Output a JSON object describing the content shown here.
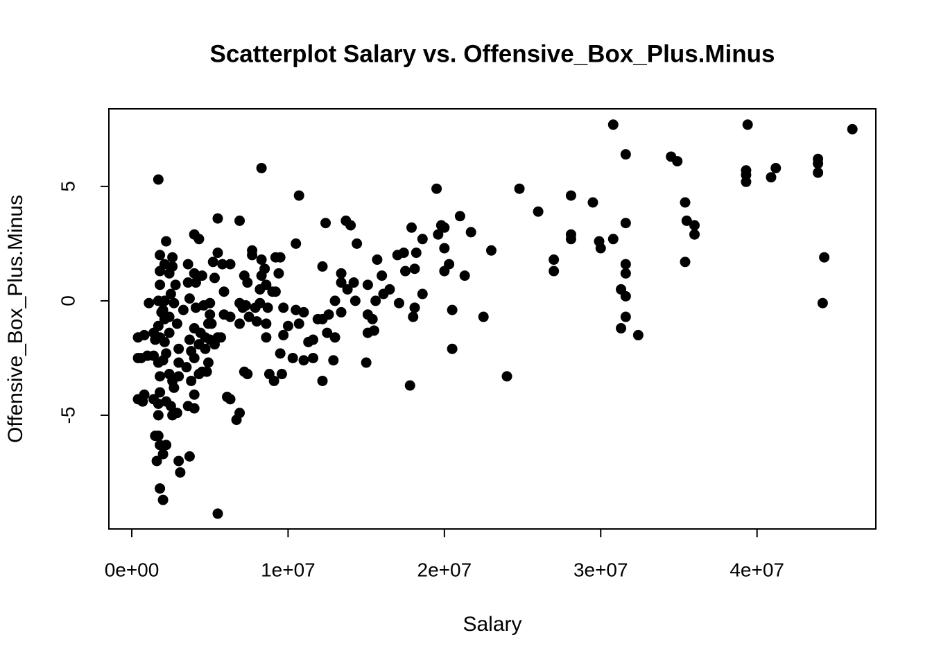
{
  "chart_data": {
    "type": "scatter",
    "title": "Scatterplot Salary vs. Offensive_Box_Plus.Minus",
    "x_label": "Salary",
    "y_label": "Offensive_Box_Plus.Minus",
    "color": "#000000",
    "xlim": [
      -1465000,
      47600000
    ],
    "ylim": [
      -9.97,
      8.39
    ],
    "xticks": [
      {
        "value": 0,
        "label": "0e+00"
      },
      {
        "value": 10000000,
        "label": "1e+07"
      },
      {
        "value": 20000000,
        "label": "2e+07"
      },
      {
        "value": 30000000,
        "label": "3e+07"
      },
      {
        "value": 40000000,
        "label": "4e+07"
      }
    ],
    "yticks": [
      -5,
      0,
      5
    ],
    "x": [
      46100000.0,
      39400000.0,
      30800000.0,
      31600000.0,
      34500000.0,
      34900000.0,
      43900000.0,
      43900000.0,
      43900000.0,
      41200000.0,
      40900000.0,
      39300000.0,
      39300000.0,
      39300000.0,
      44300000.0,
      44200000.0,
      35400000.0,
      35500000.0,
      36000000.0,
      36000000.0,
      35400000.0,
      28100000.0,
      29500000.0,
      24800000.0,
      26000000.0,
      28100000.0,
      28100000.0,
      29900000.0,
      30000000.0,
      30800000.0,
      27000000.0,
      27000000.0,
      31600000.0,
      31600000.0,
      31600000.0,
      31300000.0,
      31600000.0,
      31600000.0,
      31300000.0,
      32400000.0,
      24000000.0,
      22500000.0,
      20500000.0,
      20500000.0,
      19500000.0,
      21000000.0,
      21700000.0,
      23000000.0,
      19800000.0,
      20000000.0,
      19600000.0,
      20000000.0,
      20300000.0,
      20000000.0,
      21300000.0,
      17900000.0,
      18600000.0,
      18200000.0,
      17400000.0,
      17000000.0,
      17500000.0,
      18100000.0,
      18600000.0,
      18100000.0,
      18000000.0,
      17800000.0,
      17100000.0,
      15700000.0,
      16000000.0,
      16500000.0,
      16100000.0,
      15600000.0,
      15100000.0,
      15100000.0,
      15400000.0,
      15500000.0,
      15100000.0,
      15000000.0,
      14400000.0,
      13700000.0,
      14000000.0,
      12400000.0,
      13400000.0,
      13400000.0,
      13800000.0,
      14200000.0,
      14300000.0,
      13000000.0,
      13400000.0,
      12200000.0,
      12600000.0,
      12200000.0,
      11900000.0,
      12500000.0,
      13000000.0,
      11600000.0,
      11300000.0,
      11600000.0,
      12900000.0,
      12200000.0,
      10700000.0,
      10500000.0,
      9500000.0,
      9200000.0,
      9400000.0,
      9000000.0,
      9200000.0,
      10500000.0,
      11000000.0,
      10700000.0,
      10000000.0,
      9700000.0,
      9700000.0,
      11000000.0,
      10300000.0,
      9500000.0,
      9600000.0,
      8800000.0,
      9100000.0,
      8300000.0,
      8300000.0,
      8500000.0,
      8300000.0,
      8600000.0,
      8200000.0,
      8200000.0,
      7900000.0,
      8700000.0,
      8600000.0,
      8600000.0,
      7700000.0,
      7700000.0,
      7200000.0,
      7400000.0,
      8000000.0,
      7500000.0,
      7100000.0,
      6900000.0,
      6900000.0,
      7300000.0,
      6900000.0,
      6300000.0,
      7200000.0,
      7400000.0,
      6900000.0,
      6700000.0,
      6100000.0,
      6300000.0,
      5500000.0,
      5500000.0,
      5200000.0,
      5800000.0,
      6300000.0,
      5300000.0,
      5900000.0,
      5900000.0,
      5500000.0,
      5700000.0,
      5300000.0,
      5500000.0,
      4300000.0,
      4000000.0,
      3600000.0,
      4000000.0,
      4500000.0,
      4100000.0,
      3600000.0,
      3700000.0,
      4100000.0,
      4600000.0,
      5000000.0,
      5000000.0,
      4900000.0,
      5100000.0,
      4000000.0,
      4400000.0,
      4700000.0,
      5000000.0,
      4300000.0,
      4700000.0,
      3700000.0,
      3800000.0,
      4000000.0,
      4900000.0,
      4500000.0,
      4800000.0,
      4300000.0,
      3800000.0,
      4000000.0,
      3600000.0,
      4000000.0,
      3700000.0,
      3000000.0,
      3100000.0,
      2900000.0,
      2500000.0,
      2600000.0,
      2200000.0,
      2700000.0,
      3000000.0,
      3500000.0,
      3000000.0,
      2600000.0,
      3000000.0,
      2900000.0,
      3300000.0,
      2700000.0,
      2800000.0,
      2600000.0,
      2600000.0,
      2200000.0,
      2400000.0,
      2500000.0,
      2400000.0,
      2400000.0,
      2200000.0,
      2400000.0,
      1800000.0,
      1800000.0,
      1800000.0,
      1700000.0,
      1900000.0,
      1700000.0,
      1800000.0,
      1700000.0,
      1800000.0,
      1800000.0,
      1700000.0,
      1700000.0,
      1700000.0,
      1800000.0,
      2200000.0,
      2000000.0,
      1700000.0,
      1800000.0,
      2000000.0,
      1600000.0,
      1500000.0,
      1400000.0,
      1400000.0,
      1500000.0,
      1400000.0,
      1100000.0,
      1000000.0,
      800000.0,
      800000.0,
      400000.0,
      600000.0,
      400000.0,
      400000.0,
      700000.0,
      2100000.0,
      2000000.0,
      2100000.0,
      2100000.0,
      2000000.0,
      2100000.0
    ],
    "y": [
      7.5,
      7.7,
      7.7,
      6.4,
      6.3,
      6.1,
      6.2,
      6.0,
      5.6,
      5.8,
      5.4,
      5.7,
      5.5,
      5.2,
      1.9,
      -0.1,
      4.3,
      3.5,
      3.3,
      2.9,
      1.7,
      4.6,
      4.3,
      4.9,
      3.9,
      2.9,
      2.7,
      2.6,
      2.3,
      2.7,
      1.8,
      1.3,
      3.4,
      1.6,
      1.2,
      0.5,
      0.2,
      -0.7,
      -1.2,
      -1.5,
      -3.3,
      -0.7,
      -0.4,
      -2.1,
      4.9,
      3.7,
      3.0,
      2.2,
      3.3,
      3.2,
      2.9,
      2.3,
      1.6,
      1.3,
      1.1,
      3.2,
      2.7,
      2.1,
      2.1,
      2.0,
      1.3,
      1.4,
      0.3,
      -0.3,
      -0.7,
      -3.7,
      -0.1,
      1.8,
      1.1,
      0.5,
      0.3,
      0.0,
      0.7,
      -0.6,
      -0.8,
      -1.3,
      -1.4,
      -2.7,
      2.5,
      3.5,
      3.3,
      3.4,
      1.2,
      0.8,
      0.5,
      0.8,
      0.0,
      0.0,
      -0.5,
      1.5,
      -0.6,
      -0.8,
      -0.8,
      -1.4,
      -1.6,
      -1.7,
      -1.8,
      -2.5,
      -2.6,
      -3.5,
      4.6,
      2.5,
      1.9,
      1.9,
      1.2,
      0.4,
      0.4,
      -0.4,
      -0.5,
      -1.0,
      -1.1,
      -1.5,
      -0.3,
      -2.6,
      -2.5,
      -2.3,
      -3.2,
      -3.2,
      -3.5,
      5.8,
      1.8,
      1.4,
      1.1,
      0.7,
      0.5,
      -0.1,
      -0.3,
      -0.3,
      -1.0,
      -1.6,
      2.2,
      2.0,
      1.1,
      0.8,
      -0.9,
      -0.7,
      -0.3,
      -0.1,
      3.5,
      -0.2,
      -1.0,
      -0.7,
      -3.1,
      -3.2,
      -4.9,
      -5.2,
      -4.2,
      -4.3,
      3.6,
      2.1,
      1.7,
      1.6,
      1.6,
      1.0,
      0.4,
      -0.6,
      -1.6,
      -1.6,
      -1.9,
      -9.3,
      2.7,
      2.9,
      1.6,
      1.2,
      1.1,
      0.8,
      0.8,
      0.1,
      -0.3,
      -0.2,
      -0.1,
      -0.6,
      -1.0,
      -1.0,
      -1.2,
      -1.4,
      -1.6,
      -1.7,
      -1.9,
      -2.1,
      -1.7,
      -2.2,
      -2.5,
      -2.7,
      -3.1,
      -3.1,
      -3.2,
      -3.5,
      -4.1,
      -4.6,
      -4.7,
      -6.8,
      -7.0,
      -7.5,
      -4.9,
      -4.6,
      -5.0,
      -4.4,
      -3.8,
      -3.3,
      -2.9,
      -2.7,
      -3.5,
      -2.1,
      -1.0,
      -0.4,
      -0.1,
      0.7,
      1.5,
      1.9,
      2.6,
      1.2,
      0.3,
      -0.7,
      -1.4,
      -2.3,
      -3.2,
      2.0,
      1.3,
      0.7,
      0.0,
      -0.5,
      -1.1,
      -1.6,
      -2.7,
      -3.3,
      -4.0,
      -4.5,
      -5.0,
      -5.9,
      -6.3,
      -6.3,
      -6.7,
      5.3,
      -8.2,
      -8.7,
      -7.0,
      -5.9,
      -4.3,
      -1.4,
      -1.7,
      -2.4,
      -0.1,
      -2.4,
      -4.1,
      -1.5,
      -1.6,
      -2.5,
      -2.5,
      -4.3,
      -4.4,
      0.0,
      -0.4,
      -0.8,
      -1.8,
      -2.6,
      1.6
    ]
  }
}
